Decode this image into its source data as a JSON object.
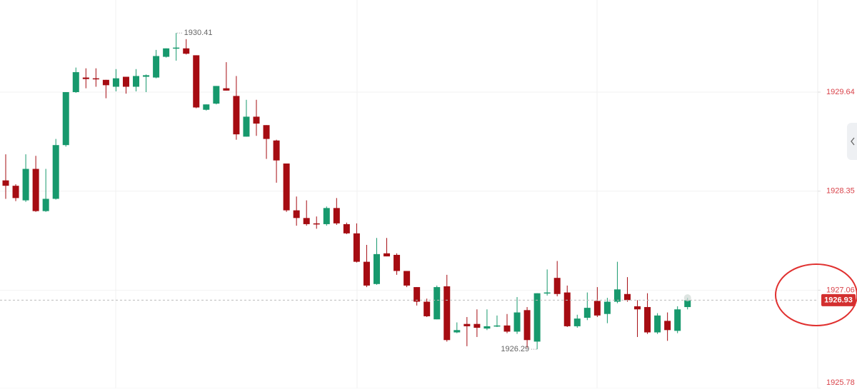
{
  "chart_data": {
    "type": "candlestick",
    "up_color": "#17996d",
    "down_color": "#a60c12",
    "ylim": [
      1925.78,
      1930.84
    ],
    "yticks": [
      1925.78,
      1927.06,
      1928.35,
      1929.64
    ],
    "grid": true,
    "last_price": 1926.93,
    "max_label": "1930.41",
    "min_label": "1926.29",
    "open": [
      1928.49,
      1928.42,
      1928.23,
      1928.64,
      1928.09,
      1928.25,
      1928.95,
      1929.64,
      1929.83,
      1929.82,
      1929.8,
      1929.71,
      1929.84,
      1929.71,
      1929.84,
      1929.83,
      1930.1,
      1930.21,
      1930.21,
      1930.12,
      1929.41,
      1929.49,
      1929.69,
      1929.59,
      1929.06,
      1929.32,
      1929.21,
      1929.01,
      1928.71,
      1928.1,
      1928.0,
      1927.93,
      1927.92,
      1928.13,
      1927.92,
      1927.8,
      1927.43,
      1927.14,
      1927.54,
      1927.52,
      1927.31,
      1927.1,
      1926.91,
      1926.68,
      1927.11,
      1926.51,
      1926.62,
      1926.62,
      1926.56,
      1926.59,
      1926.6,
      1926.52,
      1926.8,
      1926.39,
      1927.02,
      1927.22,
      1927.03,
      1926.59,
      1926.7,
      1926.92,
      1926.75,
      1926.91,
      1927.01,
      1926.85,
      1926.84,
      1926.51,
      1926.66,
      1926.53,
      1926.84
    ],
    "high": [
      1928.83,
      1928.44,
      1928.83,
      1928.81,
      1928.64,
      1929.03,
      1929.64,
      1929.96,
      1929.95,
      1929.95,
      1929.8,
      1929.94,
      1929.84,
      1929.94,
      1929.87,
      1930.19,
      1930.21,
      1930.41,
      1930.33,
      1930.12,
      1929.48,
      1929.72,
      1930.03,
      1929.85,
      1929.54,
      1929.54,
      1929.21,
      1929.02,
      1928.71,
      1928.28,
      1928.23,
      1928.02,
      1928.15,
      1928.26,
      1927.94,
      1927.93,
      1927.65,
      1927.74,
      1927.74,
      1927.54,
      1927.31,
      1927.1,
      1926.95,
      1927.12,
      1927.26,
      1926.64,
      1926.71,
      1926.81,
      1926.81,
      1926.73,
      1926.75,
      1926.97,
      1926.84,
      1927.02,
      1927.33,
      1927.44,
      1927.12,
      1926.74,
      1927.03,
      1927.1,
      1926.96,
      1927.43,
      1927.23,
      1926.93,
      1927.02,
      1926.76,
      1926.77,
      1926.85,
      1926.96
    ],
    "low": [
      1928.25,
      1928.22,
      1928.21,
      1928.08,
      1928.08,
      1928.24,
      1928.93,
      1929.63,
      1929.69,
      1929.71,
      1929.56,
      1929.65,
      1929.62,
      1929.65,
      1929.64,
      1929.82,
      1930.09,
      1930.05,
      1930.13,
      1929.43,
      1929.4,
      1929.48,
      1929.66,
      1929.02,
      1929.06,
      1929.07,
      1928.77,
      1928.46,
      1928.08,
      1927.9,
      1927.9,
      1927.86,
      1927.9,
      1927.91,
      1927.79,
      1927.42,
      1927.1,
      1927.13,
      1927.5,
      1927.26,
      1927.1,
      1926.86,
      1926.71,
      1926.68,
      1926.39,
      1926.5,
      1926.33,
      1926.45,
      1926.54,
      1926.58,
      1926.5,
      1926.49,
      1926.31,
      1926.29,
      1926.99,
      1926.98,
      1926.58,
      1926.57,
      1926.67,
      1926.71,
      1926.63,
      1926.89,
      1926.91,
      1926.45,
      1926.49,
      1926.49,
      1926.4,
      1926.5,
      1926.81
    ],
    "close": [
      1928.42,
      1928.26,
      1928.64,
      1928.09,
      1928.25,
      1928.95,
      1929.64,
      1929.9,
      1929.81,
      1929.81,
      1929.73,
      1929.82,
      1929.71,
      1929.85,
      1929.86,
      1930.11,
      1930.21,
      1930.22,
      1930.14,
      1929.44,
      1929.48,
      1929.72,
      1929.66,
      1929.09,
      1929.32,
      1929.23,
      1929.03,
      1928.75,
      1928.1,
      1928.0,
      1927.92,
      1927.92,
      1928.13,
      1927.93,
      1927.8,
      1927.43,
      1927.12,
      1927.53,
      1927.5,
      1927.31,
      1927.12,
      1926.91,
      1926.72,
      1927.1,
      1926.41,
      1926.54,
      1926.59,
      1926.57,
      1926.59,
      1926.6,
      1926.52,
      1926.77,
      1926.41,
      1927.02,
      1927.03,
      1927.01,
      1926.59,
      1926.69,
      1926.83,
      1926.73,
      1926.91,
      1927.07,
      1926.93,
      1926.81,
      1926.51,
      1926.73,
      1926.54,
      1926.81,
      1926.93
    ]
  }
}
